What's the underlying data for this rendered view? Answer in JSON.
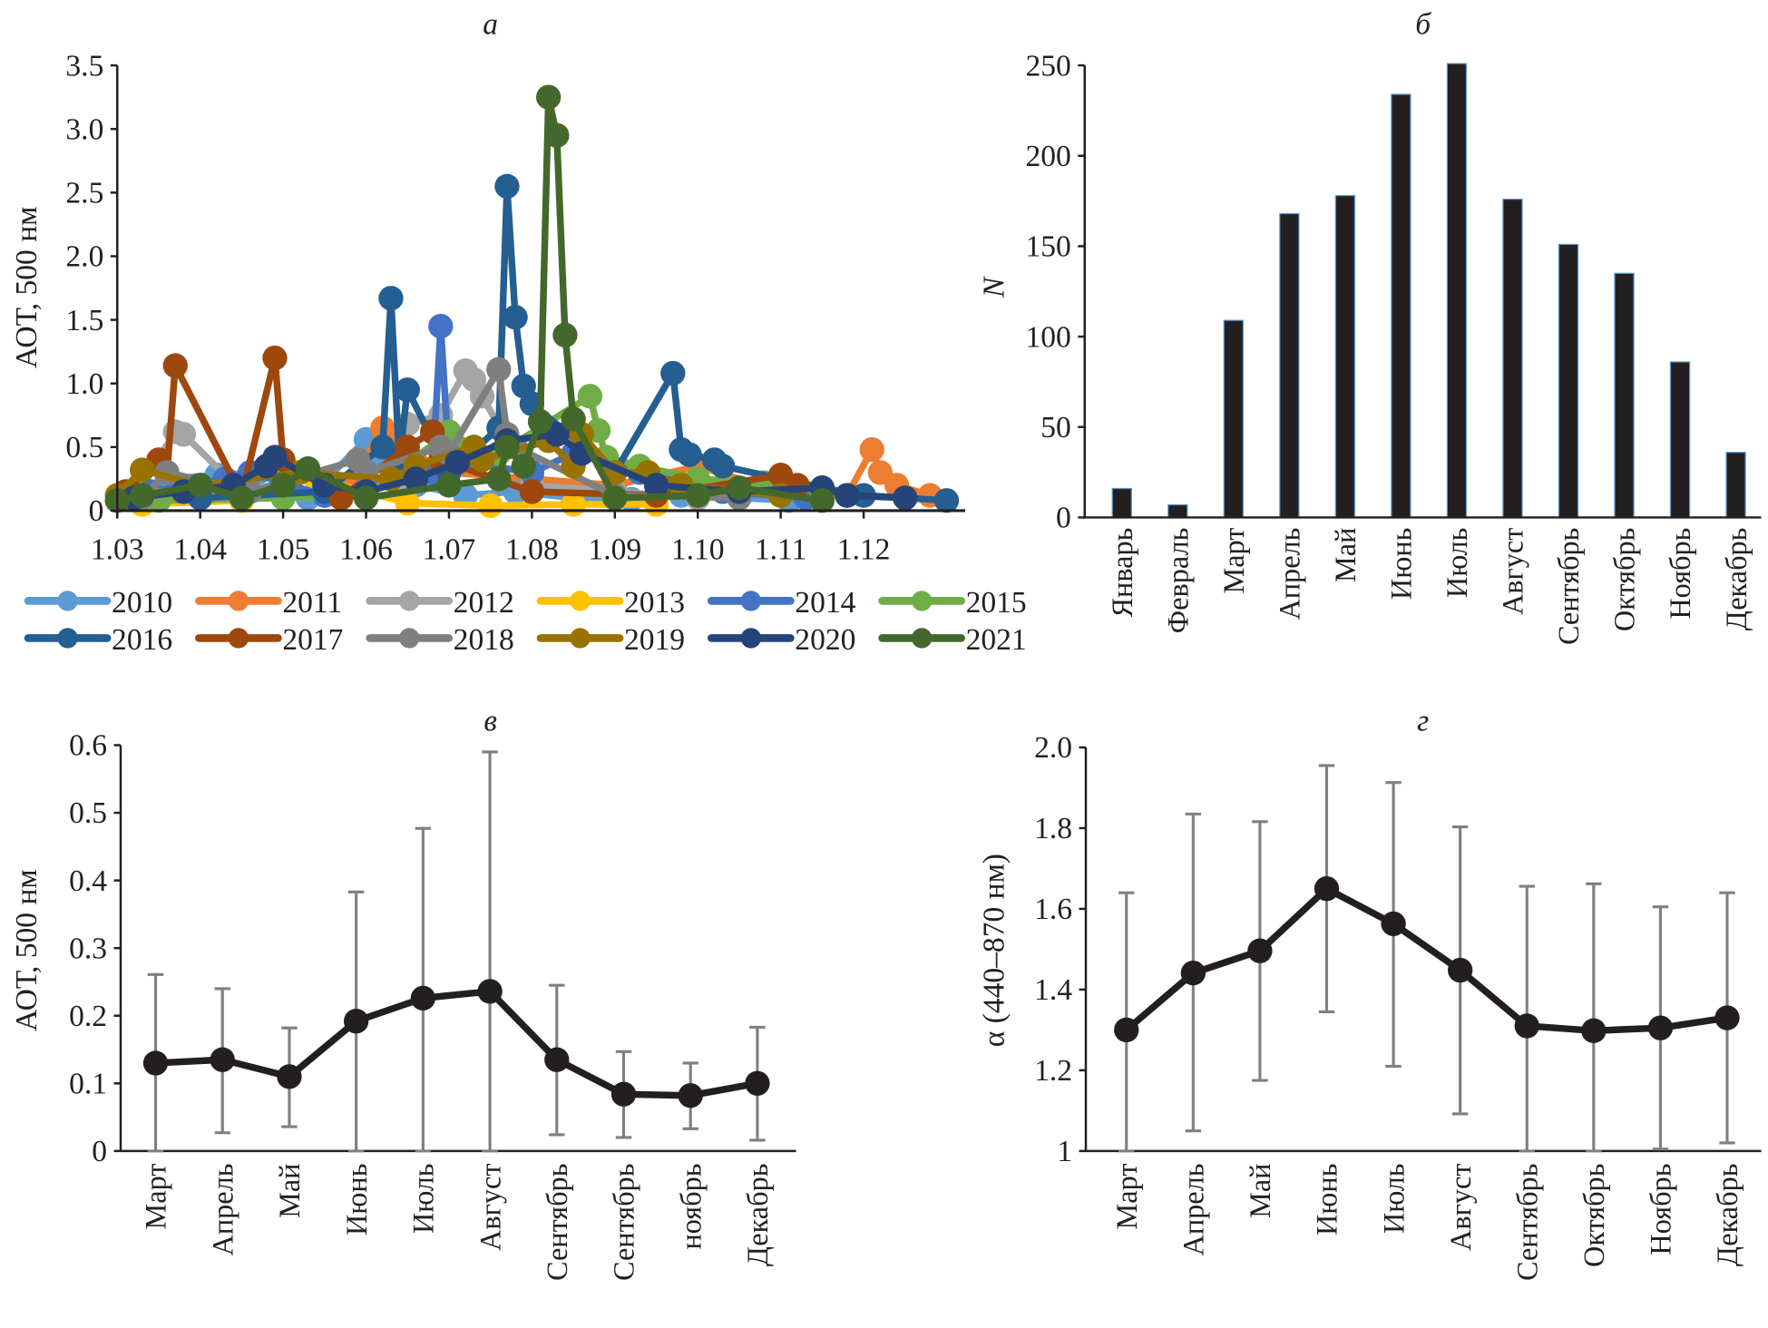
{
  "chart_data": [
    {
      "id": "a",
      "type": "line",
      "title": "а",
      "xlabel": "",
      "ylabel": "АОТ, 500 нм",
      "xlim": [
        1.03,
        1.13
      ],
      "ylim": [
        0,
        3.5
      ],
      "x_ticks": [
        "1.03",
        "1.04",
        "1.05",
        "1.06",
        "1.07",
        "1.08",
        "1.09",
        "1.10",
        "1.11",
        "1.12"
      ],
      "y_ticks": [
        "0",
        "0.5",
        "1.0",
        "1.5",
        "2.0",
        "2.5",
        "3.0",
        "3.5"
      ],
      "legend_position": "bottom",
      "series": [
        {
          "name": "2010",
          "color": "#5B9BD5",
          "x": [
            1.03,
            1.036,
            1.042,
            1.047,
            1.053,
            1.06,
            1.061,
            1.066,
            1.072,
            1.078,
            1.085,
            1.092,
            1.098,
            1.105,
            1.111
          ],
          "y": [
            0.08,
            0.25,
            0.28,
            0.3,
            0.1,
            0.56,
            0.45,
            0.2,
            0.12,
            0.15,
            0.1,
            0.09,
            0.12,
            0.1,
            0.08
          ]
        },
        {
          "name": "2011",
          "color": "#ED7D31",
          "x": [
            1.031,
            1.04,
            1.05,
            1.058,
            1.062,
            1.063,
            1.07,
            1.08,
            1.09,
            1.1,
            1.11,
            1.118,
            1.121,
            1.122,
            1.124,
            1.128
          ],
          "y": [
            0.1,
            0.15,
            0.12,
            0.2,
            0.65,
            0.55,
            0.3,
            0.25,
            0.2,
            0.35,
            0.15,
            0.12,
            0.48,
            0.3,
            0.2,
            0.12
          ]
        },
        {
          "name": "2012",
          "color": "#A5A5A5",
          "x": [
            1.032,
            1.037,
            1.038,
            1.045,
            1.055,
            1.064,
            1.065,
            1.069,
            1.072,
            1.073,
            1.074,
            1.08,
            1.09,
            1.1
          ],
          "y": [
            0.1,
            0.62,
            0.6,
            0.15,
            0.12,
            0.25,
            0.68,
            0.75,
            1.1,
            1.03,
            0.9,
            0.2,
            0.15,
            0.1
          ]
        },
        {
          "name": "2013",
          "color": "#FFC000",
          "x": [
            1.033,
            1.045,
            1.052,
            1.054,
            1.065,
            1.075,
            1.085,
            1.095
          ],
          "y": [
            0.05,
            0.08,
            0.3,
            0.25,
            0.06,
            0.04,
            0.05,
            0.05
          ]
        },
        {
          "name": "2014",
          "color": "#4472C4",
          "x": [
            1.034,
            1.043,
            1.046,
            1.055,
            1.068,
            1.069,
            1.07,
            1.08,
            1.085,
            1.093,
            1.103,
            1.113
          ],
          "y": [
            0.15,
            0.25,
            0.3,
            0.12,
            0.3,
            1.45,
            0.4,
            0.3,
            0.45,
            0.3,
            0.15,
            0.1
          ]
        },
        {
          "name": "2015",
          "color": "#70AD47",
          "x": [
            1.035,
            1.05,
            1.06,
            1.07,
            1.071,
            1.076,
            1.087,
            1.088,
            1.089,
            1.093,
            1.1,
            1.108,
            1.115
          ],
          "y": [
            0.08,
            0.1,
            0.12,
            0.62,
            0.5,
            0.45,
            0.9,
            0.63,
            0.42,
            0.35,
            0.25,
            0.22,
            0.15
          ]
        },
        {
          "name": "2016",
          "color": "#255E91",
          "x": [
            1.04,
            1.055,
            1.062,
            1.063,
            1.064,
            1.065,
            1.07,
            1.076,
            1.077,
            1.078,
            1.079,
            1.08,
            1.09,
            1.097,
            1.098,
            1.099,
            1.102,
            1.103,
            1.115,
            1.12,
            1.125,
            1.13
          ],
          "y": [
            0.1,
            0.15,
            0.5,
            1.67,
            0.4,
            0.95,
            0.3,
            0.65,
            2.55,
            1.52,
            0.98,
            0.84,
            0.3,
            1.08,
            0.48,
            0.44,
            0.4,
            0.35,
            0.18,
            0.12,
            0.1,
            0.08
          ]
        },
        {
          "name": "2017",
          "color": "#9E480E",
          "x": [
            1.031,
            1.035,
            1.036,
            1.037,
            1.045,
            1.049,
            1.05,
            1.057,
            1.065,
            1.068,
            1.069,
            1.08,
            1.095,
            1.11,
            1.112
          ],
          "y": [
            0.15,
            0.4,
            0.3,
            1.14,
            0.12,
            1.2,
            0.4,
            0.1,
            0.5,
            0.62,
            0.4,
            0.15,
            0.12,
            0.28,
            0.2
          ]
        },
        {
          "name": "2018",
          "color": "#7F7F7F",
          "x": [
            1.033,
            1.036,
            1.046,
            1.059,
            1.06,
            1.069,
            1.07,
            1.076,
            1.077,
            1.078,
            1.09,
            1.105
          ],
          "y": [
            0.1,
            0.3,
            0.15,
            0.4,
            0.3,
            0.5,
            0.45,
            1.11,
            0.6,
            0.5,
            0.12,
            0.1
          ]
        },
        {
          "name": "2019",
          "color": "#997300",
          "x": [
            1.03,
            1.033,
            1.04,
            1.052,
            1.063,
            1.066,
            1.073,
            1.074,
            1.082,
            1.085,
            1.086,
            1.09,
            1.094,
            1.098,
            1.11
          ],
          "y": [
            0.12,
            0.32,
            0.2,
            0.3,
            0.25,
            0.35,
            0.5,
            0.4,
            0.55,
            0.35,
            0.6,
            0.3,
            0.3,
            0.2,
            0.12
          ]
        },
        {
          "name": "2020",
          "color": "#264478",
          "x": [
            1.032,
            1.038,
            1.044,
            1.048,
            1.049,
            1.055,
            1.06,
            1.066,
            1.071,
            1.077,
            1.083,
            1.086,
            1.095,
            1.105,
            1.115,
            1.118,
            1.125
          ],
          "y": [
            0.1,
            0.15,
            0.2,
            0.35,
            0.42,
            0.2,
            0.15,
            0.25,
            0.38,
            0.55,
            0.6,
            0.45,
            0.2,
            0.15,
            0.18,
            0.12,
            0.1
          ]
        },
        {
          "name": "2021",
          "color": "#43682B",
          "x": [
            1.03,
            1.033,
            1.04,
            1.045,
            1.05,
            1.053,
            1.06,
            1.07,
            1.076,
            1.077,
            1.079,
            1.081,
            1.082,
            1.083,
            1.084,
            1.085,
            1.09,
            1.1,
            1.105,
            1.115
          ],
          "y": [
            0.08,
            0.12,
            0.2,
            0.1,
            0.2,
            0.33,
            0.1,
            0.2,
            0.25,
            0.5,
            0.35,
            0.7,
            3.25,
            2.95,
            1.38,
            0.72,
            0.1,
            0.12,
            0.18,
            0.08
          ]
        }
      ]
    },
    {
      "id": "b",
      "type": "bar",
      "title": "б",
      "xlabel": "",
      "ylabel": "N",
      "ylim": [
        0,
        250
      ],
      "y_ticks": [
        "0",
        "50",
        "100",
        "150",
        "200",
        "250"
      ],
      "categories": [
        "Январь",
        "Февраль",
        "Март",
        "Апрель",
        "Май",
        "Июнь",
        "Июль",
        "Август",
        "Сентябрь",
        "Октябрь",
        "Ноябрь",
        "Декабрь"
      ],
      "values": [
        16,
        7,
        109,
        168,
        178,
        234,
        251,
        176,
        151,
        135,
        86,
        36
      ],
      "bar_color": "#231f20"
    },
    {
      "id": "v",
      "type": "line",
      "title": "в",
      "xlabel": "",
      "ylabel": "АОТ, 500 нм",
      "ylim": [
        0,
        0.6
      ],
      "y_ticks": [
        "0",
        "0.1",
        "0.2",
        "0.3",
        "0.4",
        "0.5",
        "0.6"
      ],
      "categories": [
        "Март",
        "Апрель",
        "Май",
        "Июнь",
        "Июль",
        "Август",
        "Сентябрь",
        "Сентябрь",
        "ноябрь",
        "Декабрь"
      ],
      "values": [
        0.13,
        0.135,
        0.11,
        0.192,
        0.226,
        0.236,
        0.135,
        0.084,
        0.082,
        0.1
      ],
      "error_low": [
        0.0,
        0.027,
        0.036,
        0.0,
        0.0,
        0.0,
        0.024,
        0.02,
        0.033,
        0.016
      ],
      "error_high": [
        0.261,
        0.24,
        0.182,
        0.383,
        0.477,
        0.59,
        0.245,
        0.147,
        0.13,
        0.183
      ]
    },
    {
      "id": "g",
      "type": "line",
      "title": "г",
      "xlabel": "",
      "ylabel": "α (440–870 нм)",
      "ylim": [
        1,
        2.0
      ],
      "y_ticks": [
        "1",
        "1.2",
        "1.4",
        "1.6",
        "1.8",
        "2.0"
      ],
      "categories": [
        "Март",
        "Апрель",
        "Май",
        "Июнь",
        "Июль",
        "Август",
        "Сентябрь",
        "Октябрь",
        "Ноябрь",
        "Декабрь"
      ],
      "values": [
        1.3,
        1.441,
        1.496,
        1.65,
        1.563,
        1.448,
        1.31,
        1.298,
        1.305,
        1.33
      ],
      "error_low": [
        1.0,
        1.05,
        1.175,
        1.345,
        1.21,
        1.092,
        1.0,
        1.0,
        1.005,
        1.02
      ],
      "error_high": [
        1.64,
        1.835,
        1.816,
        1.955,
        1.913,
        1.803,
        1.656,
        1.662,
        1.605,
        1.64
      ]
    }
  ]
}
